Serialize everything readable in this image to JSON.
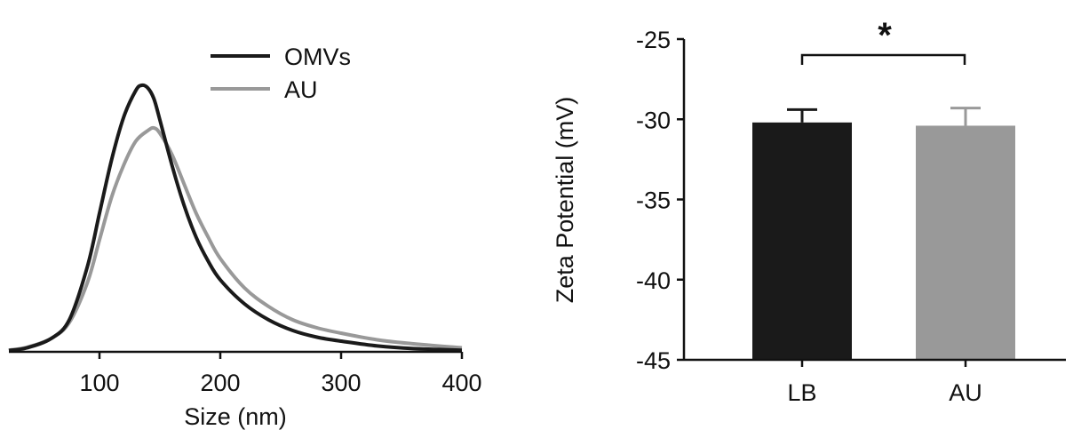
{
  "chart_data": [
    {
      "type": "line",
      "xlabel": "Size (nm)",
      "ylabel": "",
      "xlim": [
        25,
        400
      ],
      "ylim": [
        0,
        1.0
      ],
      "x_ticks": [
        100,
        200,
        300,
        400
      ],
      "x_tick_labels": [
        "100",
        "200",
        "300",
        "400"
      ],
      "legend": "top-right",
      "series": [
        {
          "name": "OMVs",
          "color": "#1a1a1a",
          "x": [
            25,
            40,
            60,
            75,
            90,
            100,
            110,
            120,
            130,
            135,
            140,
            145,
            150,
            160,
            170,
            180,
            190,
            200,
            220,
            240,
            260,
            280,
            300,
            330,
            360,
            400
          ],
          "y": [
            0.005,
            0.015,
            0.05,
            0.12,
            0.32,
            0.52,
            0.72,
            0.88,
            0.98,
            1.0,
            0.99,
            0.95,
            0.87,
            0.7,
            0.55,
            0.43,
            0.34,
            0.27,
            0.18,
            0.12,
            0.08,
            0.055,
            0.04,
            0.022,
            0.012,
            0.006
          ]
        },
        {
          "name": "AU",
          "color": "#999999",
          "x": [
            25,
            40,
            60,
            75,
            90,
            100,
            110,
            120,
            130,
            140,
            145,
            150,
            160,
            170,
            180,
            190,
            200,
            220,
            240,
            260,
            280,
            300,
            330,
            360,
            400
          ],
          "y": [
            0.006,
            0.017,
            0.05,
            0.11,
            0.26,
            0.42,
            0.58,
            0.7,
            0.79,
            0.83,
            0.84,
            0.82,
            0.74,
            0.63,
            0.52,
            0.43,
            0.35,
            0.24,
            0.17,
            0.12,
            0.09,
            0.07,
            0.045,
            0.03,
            0.015
          ]
        }
      ]
    },
    {
      "type": "bar",
      "categories": [
        "LB",
        "AU"
      ],
      "xlabel": "",
      "ylabel": "Zeta Potential (mV)",
      "ylim": [
        -45,
        -25
      ],
      "y_ticks": [
        -25,
        -30,
        -35,
        -40,
        -45
      ],
      "y_tick_labels": [
        "-25",
        "-30",
        "-35",
        "-40",
        "-45"
      ],
      "values": [
        -30.2,
        -30.4
      ],
      "error": [
        0.8,
        1.1
      ],
      "colors": [
        "#1a1a1a",
        "#999999"
      ],
      "annotation": "*"
    }
  ]
}
